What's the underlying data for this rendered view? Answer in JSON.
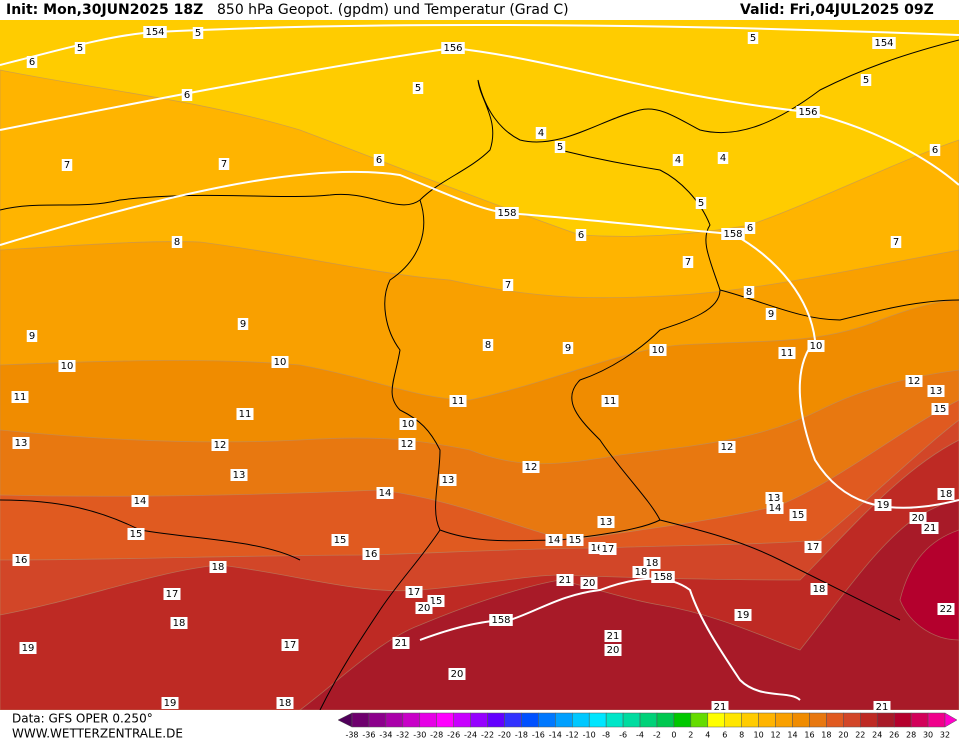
{
  "header": {
    "init": "Init: Mon,30JUN2025 18Z",
    "title": "850 hPa Geopot. (gpdm) und Temperatur (Grad C)",
    "valid": "Valid: Fri,04JUL2025 09Z"
  },
  "footer": {
    "data_source": "Data: GFS OPER 0.250°",
    "website": "WWW.WETTERZENTRALE.DE"
  },
  "colorbar": {
    "ticks": [
      -38,
      -36,
      -34,
      -32,
      -30,
      -28,
      -26,
      -24,
      -22,
      -20,
      -18,
      -16,
      -14,
      -12,
      -10,
      -8,
      -6,
      -4,
      -2,
      0,
      2,
      4,
      6,
      8,
      10,
      12,
      14,
      16,
      18,
      20,
      22,
      24,
      26,
      28,
      30,
      32
    ],
    "colors": [
      "#50005a",
      "#6e006e",
      "#8c008c",
      "#aa00aa",
      "#c800c8",
      "#e600e6",
      "#ff00ff",
      "#c800ff",
      "#9600ff",
      "#6400ff",
      "#3232ff",
      "#0050ff",
      "#0078ff",
      "#00a0ff",
      "#00c8ff",
      "#00e6ff",
      "#00e6c8",
      "#00dca0",
      "#00d278",
      "#00c850",
      "#00c800",
      "#64dc00",
      "#ffff00",
      "#ffe600",
      "#ffcc00",
      "#ffb400",
      "#f9a000",
      "#f08c00",
      "#e87810",
      "#e05a20",
      "#d24628",
      "#be2a24",
      "#a81a28",
      "#b4002d",
      "#d2005a",
      "#f0008c",
      "#ff00c8"
    ]
  },
  "contour_labels": [
    154,
    5,
    156,
    5,
    5,
    154,
    5,
    156,
    6,
    5,
    6,
    7,
    7,
    6,
    4,
    5,
    4,
    4,
    6,
    5,
    158,
    158,
    6,
    6,
    8,
    7,
    7,
    7,
    8,
    9,
    9,
    9,
    8,
    9,
    10,
    10,
    10,
    10,
    11,
    11,
    11,
    10,
    11,
    11,
    12,
    13,
    15,
    12,
    12,
    13,
    12,
    12,
    13,
    13,
    14,
    14,
    13,
    14,
    15,
    19,
    18,
    20,
    21,
    15,
    15,
    13,
    14,
    15,
    16,
    17,
    17,
    16,
    16,
    18,
    18,
    18,
    158,
    21,
    20,
    17,
    17,
    15,
    20,
    18,
    22,
    158,
    19,
    18,
    21,
    20,
    17,
    21,
    19,
    20,
    19,
    18,
    21,
    21
  ]
}
